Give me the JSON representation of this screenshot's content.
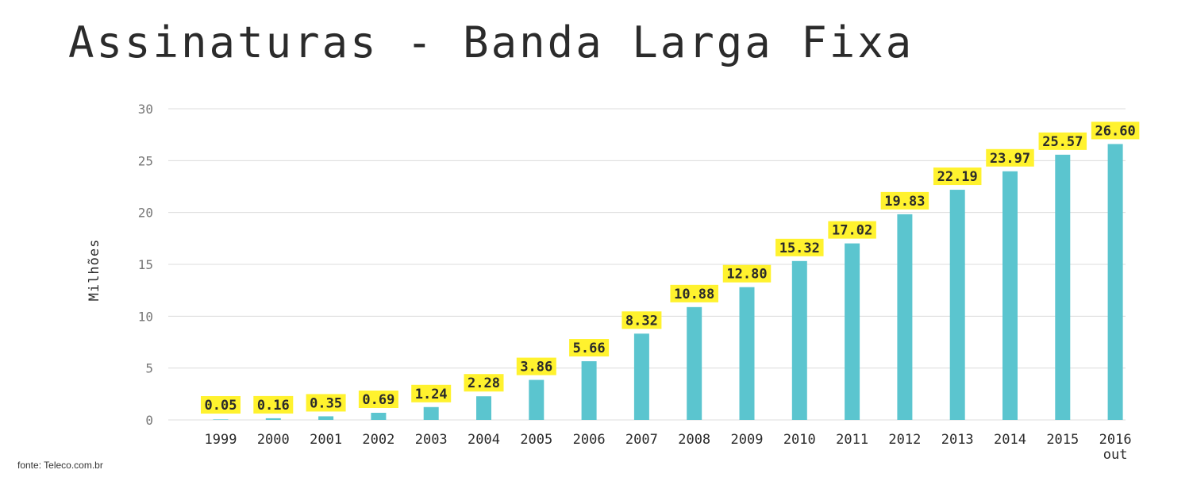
{
  "title": "Assinaturas - Banda Larga Fixa",
  "source": "fonte: Teleco.com.br",
  "colors": {
    "bar": "#5bc5cf",
    "label_bg": "#fff22e",
    "grid": "#dcdcdc"
  },
  "chart_data": {
    "type": "bar",
    "title": "Assinaturas - Banda Larga Fixa",
    "xlabel": "",
    "ylabel": "Milhões",
    "ylim": [
      0,
      30
    ],
    "yticks": [
      0,
      5,
      10,
      15,
      20,
      25,
      30
    ],
    "grid": true,
    "categories": [
      "1999",
      "2000",
      "2001",
      "2002",
      "2003",
      "2004",
      "2005",
      "2006",
      "2007",
      "2008",
      "2009",
      "2010",
      "2011",
      "2012",
      "2013",
      "2014",
      "2015",
      "2016"
    ],
    "category_sublabels": [
      "",
      "",
      "",
      "",
      "",
      "",
      "",
      "",
      "",
      "",
      "",
      "",
      "",
      "",
      "",
      "",
      "",
      "out"
    ],
    "values": [
      0.05,
      0.16,
      0.35,
      0.69,
      1.24,
      2.28,
      3.86,
      5.66,
      8.32,
      10.88,
      12.8,
      15.32,
      17.02,
      19.83,
      22.19,
      23.97,
      25.57,
      26.6
    ],
    "value_labels": [
      "0.05",
      "0.16",
      "0.35",
      "0.69",
      "1.24",
      "2.28",
      "3.86",
      "5.66",
      "8.32",
      "10.88",
      "12.80",
      "15.32",
      "17.02",
      "19.83",
      "22.19",
      "23.97",
      "25.57",
      "26.60"
    ]
  }
}
